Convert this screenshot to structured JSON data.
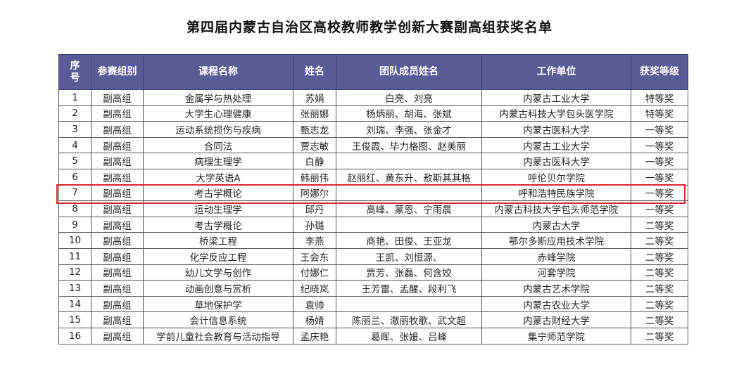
{
  "title": "第四届内蒙古自治区高校教师教学创新大赛副高组获奖名单",
  "table": {
    "headers": [
      "序号",
      "参赛组别",
      "课程名称",
      "姓名",
      "团队成员姓名",
      "工作单位",
      "获奖等级"
    ],
    "rows": [
      [
        "1",
        "副高组",
        "金属学与热处理",
        "苏娟",
        "白亮、刘亮",
        "内蒙古工业大学",
        "特等奖"
      ],
      [
        "2",
        "副高组",
        "大学生心理健康",
        "张丽娜",
        "杨炳丽、胡海、张斌",
        "内蒙古科技大学包头医学院",
        "特等奖"
      ],
      [
        "3",
        "副高组",
        "运动系统损伤与疾病",
        "甄志龙",
        "刘瑞、李强、张金才",
        "内蒙古医科大学",
        "一等奖"
      ],
      [
        "4",
        "副高组",
        "合同法",
        "贾志敏",
        "王俊霞、毕力格图、赵美丽",
        "内蒙古工业大学",
        "一等奖"
      ],
      [
        "5",
        "副高组",
        "病理生理学",
        "白静",
        "",
        "内蒙古医科大学",
        "一等奖"
      ],
      [
        "6",
        "副高组",
        "大学英语A",
        "韩丽伟",
        "赵丽红、黄东升、敖斯其其格",
        "呼伦贝尔学院",
        "一等奖"
      ],
      [
        "7",
        "副高组",
        "考古学概论",
        "阿娜尔",
        "",
        "呼和浩特民族学院",
        "一等奖"
      ],
      [
        "8",
        "副高组",
        "运动生理学",
        "邱丹",
        "高峰、蒙恩、宁雨晨",
        "内蒙古科技大学包头师范学院",
        "一等奖"
      ],
      [
        "9",
        "副高组",
        "考古学概论",
        "孙璐",
        "",
        "内蒙古大学",
        "二等奖"
      ],
      [
        "10",
        "副高组",
        "桥梁工程",
        "李燕",
        "商艳、田俊、王亚龙",
        "鄂尔多斯应用技术学院",
        "二等奖"
      ],
      [
        "11",
        "副高组",
        "化学反应工程",
        "王会东",
        "王凯、刘恒源、",
        "赤峰学院",
        "二等奖"
      ],
      [
        "12",
        "副高组",
        "幼儿文学与创作",
        "付娜仁",
        "贾芳、张磊、何含姣",
        "河套学院",
        "二等奖"
      ],
      [
        "13",
        "副高组",
        "动画创意与赏析",
        "纪晓岚",
        "王芳雷、孟醒、段利飞",
        "内蒙古艺术学院",
        "二等奖"
      ],
      [
        "14",
        "副高组",
        "草地保护学",
        "袁帅",
        "",
        "内蒙古农业大学",
        "二等奖"
      ],
      [
        "15",
        "副高组",
        "会计信息系统",
        "杨婧",
        "陈丽兰、澈丽牧歌、武文超",
        "内蒙古财经大学",
        "二等奖"
      ],
      [
        "16",
        "副高组",
        "学前儿童社会教育与活动指导",
        "孟庆艳",
        "葛晖、张媛、吕峰",
        "集宁师范学院",
        "二等奖"
      ]
    ],
    "highlighted_row": "7"
  },
  "colors": {
    "header_bg": "#5a5b96",
    "highlight_border": "#d8262f"
  }
}
